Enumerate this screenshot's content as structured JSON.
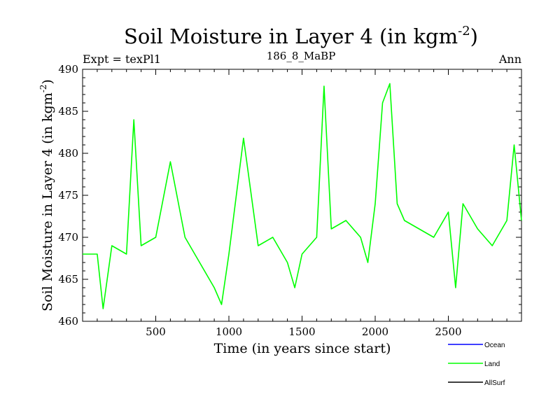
{
  "chart_data": {
    "type": "line",
    "title": "Soil Moisture in Layer 4 (in kgm",
    "title_sup": "-2",
    "title_close": ")",
    "subtitle_left": "Expt = texPl1",
    "subtitle_center": "186_8_MaBP",
    "subtitle_right": "Ann",
    "xlabel": "Time (in years since start)",
    "ylabel": "Soil Moisture in Layer 4 (in kgm",
    "ylabel_sup": "-2",
    "ylabel_close": ")",
    "xlim": [
      0,
      3000
    ],
    "ylim": [
      460,
      490
    ],
    "xticks": [
      500,
      1000,
      1500,
      2000,
      2500
    ],
    "yticks": [
      460,
      465,
      470,
      475,
      480,
      485,
      490
    ],
    "legend_position": "bottom-right",
    "series": [
      {
        "name": "Ocean",
        "color": "#0000ff",
        "values": []
      },
      {
        "name": "Land",
        "color": "#00ff00",
        "x": [
          0,
          100,
          140,
          200,
          300,
          350,
          400,
          500,
          600,
          700,
          800,
          900,
          950,
          1000,
          1100,
          1200,
          1300,
          1400,
          1450,
          1500,
          1600,
          1650,
          1700,
          1800,
          1900,
          1950,
          2000,
          2050,
          2100,
          2150,
          2200,
          2300,
          2400,
          2500,
          2550,
          2600,
          2700,
          2800,
          2900,
          2950,
          3000
        ],
        "values": [
          468,
          468,
          461.5,
          469,
          468,
          484,
          469,
          470,
          479,
          470,
          467,
          464,
          462,
          468,
          481.8,
          469,
          470,
          467,
          464,
          468,
          470,
          488,
          471,
          472,
          470,
          467,
          474,
          486,
          488.3,
          474,
          472,
          471,
          470,
          473,
          464,
          474,
          471,
          469,
          472,
          481,
          472
        ]
      },
      {
        "name": "AllSurf",
        "color": "#000000",
        "values": []
      }
    ]
  }
}
